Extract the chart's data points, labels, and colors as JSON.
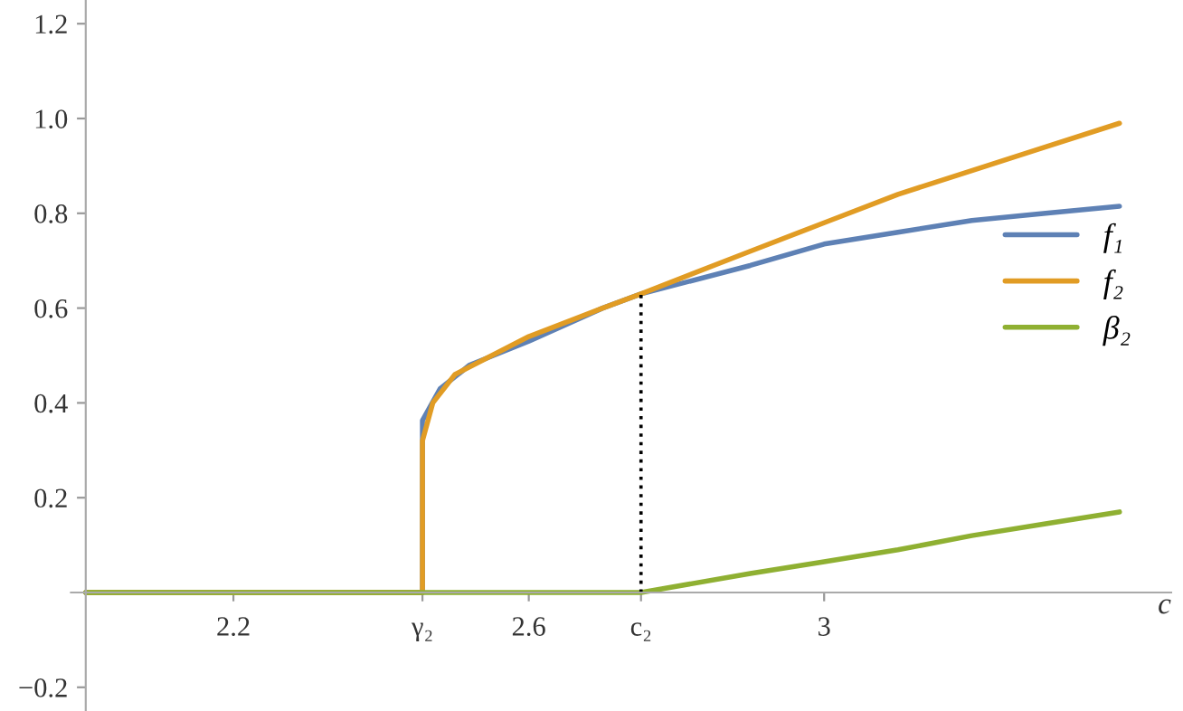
{
  "chart_data": {
    "type": "line",
    "xlabel": "c",
    "xlim": [
      1.98,
      3.47
    ],
    "ylim": [
      -0.25,
      1.25
    ],
    "xticks": [
      2.2,
      {
        "value": 2.456,
        "label": "γ₂"
      },
      2.6,
      {
        "value": 2.752,
        "label": "c₂"
      },
      3
    ],
    "yticks": [
      {
        "value": -0.2,
        "label": "−0.2"
      },
      0.2,
      0.4,
      0.6,
      0.8,
      {
        "value": 1.0,
        "label": "1.0"
      },
      1.2
    ],
    "legend": "right",
    "grid": false,
    "marker": "none",
    "line_style": "solid",
    "series": [
      {
        "name": "f₁",
        "color": "#5e81b5",
        "x": [
          2.0,
          2.456,
          2.456,
          2.48,
          2.52,
          2.6,
          2.7,
          2.752,
          2.9,
          3.0,
          3.1,
          3.2,
          3.3,
          3.4
        ],
        "values": [
          0,
          0,
          0.363,
          0.43,
          0.48,
          0.53,
          0.6,
          0.63,
          0.69,
          0.735,
          0.76,
          0.785,
          0.8,
          0.815
        ]
      },
      {
        "name": "f₂",
        "color": "#e19c24",
        "x": [
          2.0,
          2.456,
          2.456,
          2.47,
          2.5,
          2.6,
          2.7,
          2.752,
          2.9,
          3.0,
          3.1,
          3.2,
          3.3,
          3.4
        ],
        "values": [
          0,
          0,
          0.32,
          0.4,
          0.46,
          0.54,
          0.6,
          0.63,
          0.72,
          0.78,
          0.84,
          0.89,
          0.94,
          0.99
        ]
      },
      {
        "name": "β₂",
        "color": "#8fb032",
        "x": [
          2.0,
          2.752,
          2.9,
          3.0,
          3.1,
          3.2,
          3.3,
          3.4
        ],
        "values": [
          0,
          0,
          0.04,
          0.065,
          0.09,
          0.12,
          0.145,
          0.17
        ]
      }
    ],
    "ref_lines": [
      {
        "axis": "x",
        "value": 2.752,
        "line_style": "dotted",
        "color": "#000000"
      }
    ]
  }
}
